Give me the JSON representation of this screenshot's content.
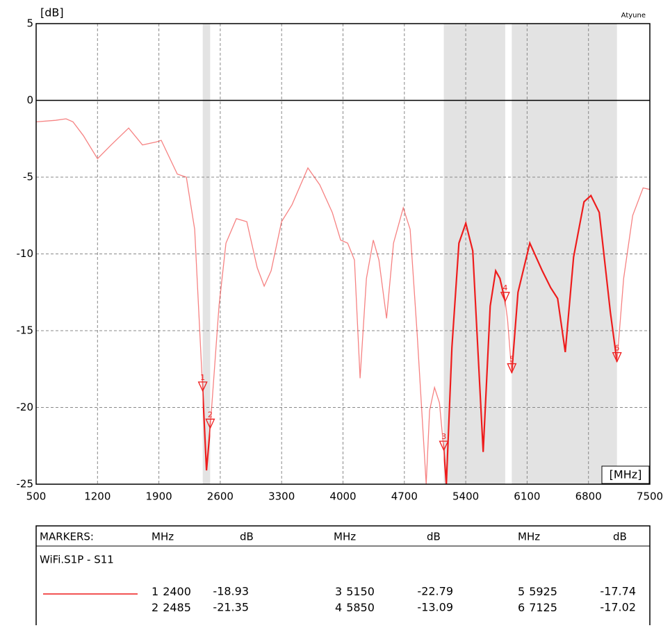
{
  "chart_data": {
    "type": "line",
    "y_unit": "[dB]",
    "x_unit": "[MHz]",
    "brand": "Atyune",
    "xlim": [
      500,
      7500
    ],
    "xticks": [
      500,
      1200,
      1900,
      2600,
      3300,
      4000,
      4700,
      5400,
      6100,
      6800,
      7500
    ],
    "ylim": [
      -25,
      5
    ],
    "yticks": [
      5,
      0,
      -5,
      -10,
      -15,
      -20,
      -25
    ],
    "grid": true,
    "series": [
      {
        "name": "WiFi.S1P - S11",
        "color": "#ee1c1c",
        "x": [
          500,
          722,
          841,
          920,
          1039,
          1200,
          1356,
          1555,
          1713,
          1872,
          1927,
          2110,
          2213,
          2308,
          2400,
          2443,
          2485,
          2586,
          2665,
          2784,
          2903,
          3022,
          3101,
          3180,
          3299,
          3418,
          3600,
          3735,
          3878,
          3973,
          4053,
          4131,
          4195,
          4267,
          4346,
          4410,
          4497,
          4576,
          4687,
          4766,
          4846,
          4949,
          4988,
          5044,
          5100,
          5150,
          5179,
          5242,
          5322,
          5401,
          5480,
          5599,
          5679,
          5742,
          5790,
          5850,
          5877,
          5925,
          5996,
          6131,
          6273,
          6369,
          6448,
          6535,
          6630,
          6749,
          6828,
          6923,
          7050,
          7125,
          7201,
          7304,
          7423,
          7500
        ],
        "values": [
          -1.4,
          -1.3,
          -1.2,
          -1.4,
          -2.3,
          -3.8,
          -2.9,
          -1.8,
          -2.9,
          -2.7,
          -2.6,
          -4.8,
          -5.0,
          -8.4,
          -18.93,
          -24.1,
          -21.35,
          -13.4,
          -9.3,
          -7.7,
          -7.9,
          -10.9,
          -12.1,
          -11.1,
          -7.9,
          -6.8,
          -4.4,
          -5.5,
          -7.3,
          -9.1,
          -9.3,
          -10.4,
          -18.1,
          -11.6,
          -9.1,
          -10.4,
          -14.2,
          -9.3,
          -7.0,
          -8.4,
          -15.2,
          -25.0,
          -20.2,
          -18.7,
          -19.7,
          -22.79,
          -25.0,
          -16.1,
          -9.3,
          -8.0,
          -9.8,
          -22.9,
          -13.4,
          -11.1,
          -11.6,
          -13.09,
          -14.3,
          -17.74,
          -12.5,
          -9.3,
          -11.1,
          -12.2,
          -12.9,
          -16.4,
          -10.2,
          -6.6,
          -6.2,
          -7.3,
          -13.8,
          -17.02,
          -11.6,
          -7.5,
          -5.7,
          -5.8
        ]
      }
    ],
    "markers": [
      {
        "label": "1",
        "mhz": 2400,
        "db": -18.93
      },
      {
        "label": "2",
        "mhz": 2485,
        "db": -21.35
      },
      {
        "label": "3",
        "mhz": 5150,
        "db": -22.79
      },
      {
        "label": "4",
        "mhz": 5850,
        "db": -13.09
      },
      {
        "label": "5",
        "mhz": 5925,
        "db": -17.74
      },
      {
        "label": "6",
        "mhz": 7125,
        "db": -17.02
      }
    ],
    "table": {
      "title": "MARKERS:",
      "headers": [
        "MHz",
        "dB",
        "MHz",
        "dB",
        "MHz",
        "dB"
      ]
    }
  }
}
